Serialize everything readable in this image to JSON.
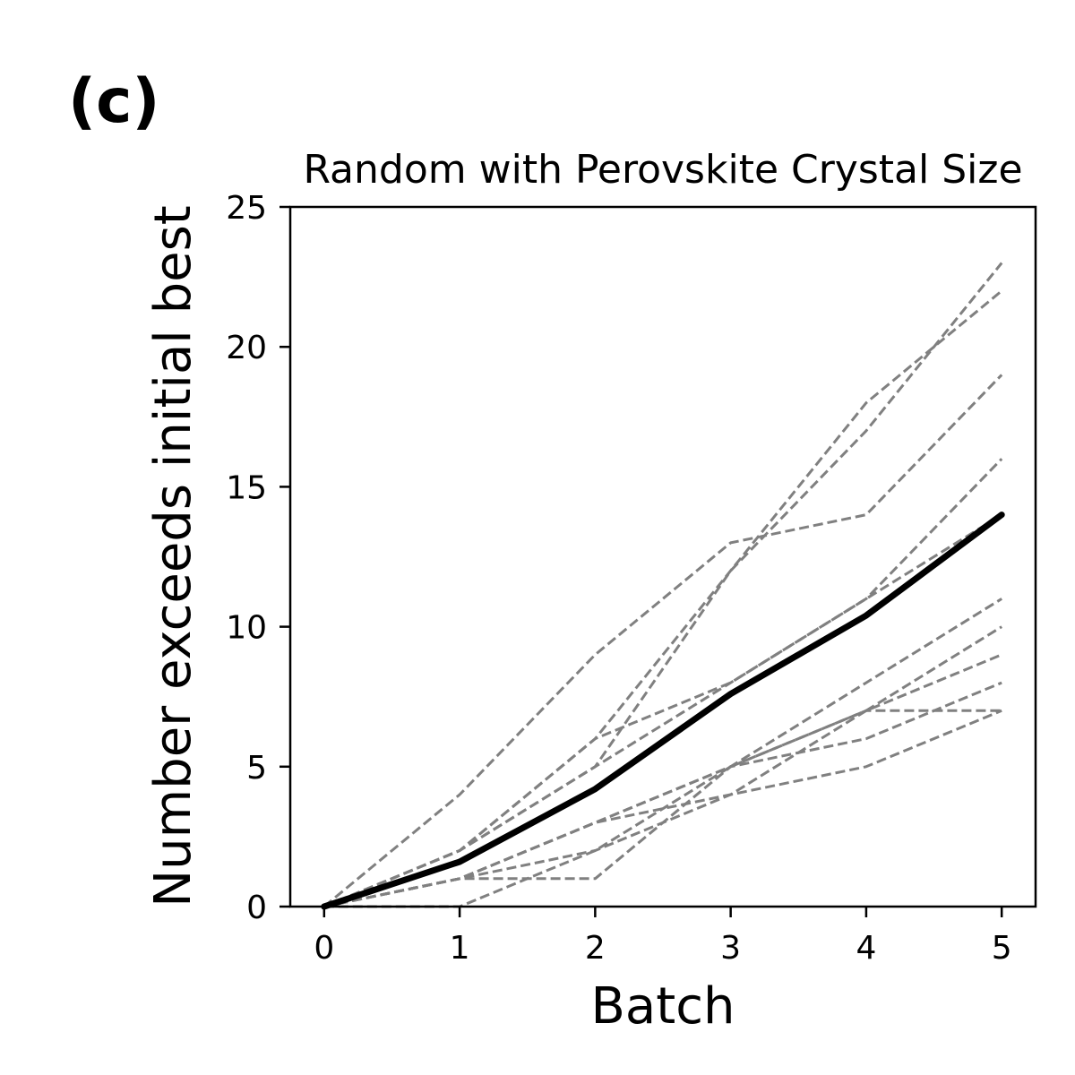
{
  "panel_label": "(c)",
  "chart_data": {
    "type": "line",
    "title": "Random with Perovskite Crystal Size",
    "xlabel": "Batch",
    "ylabel": "Number exceeds initial best",
    "x": [
      0,
      1,
      2,
      3,
      4,
      5
    ],
    "xlim": [
      -0.25,
      5.25
    ],
    "ylim": [
      0,
      25
    ],
    "xticks": [
      "0",
      "1",
      "2",
      "3",
      "4",
      "5"
    ],
    "yticks": [
      "0",
      "5",
      "10",
      "15",
      "20",
      "25"
    ],
    "grid": false,
    "legend": "none",
    "series": [
      {
        "style": "dashed",
        "color": "#808080",
        "values": [
          0,
          2,
          6,
          12,
          18,
          22
        ]
      },
      {
        "style": "dashed",
        "color": "#808080",
        "values": [
          0,
          2,
          5,
          12,
          17,
          23
        ]
      },
      {
        "style": "dashed",
        "color": "#808080",
        "values": [
          0,
          4,
          9,
          13,
          14,
          19
        ]
      },
      {
        "style": "dashed",
        "color": "#808080",
        "values": [
          0,
          2,
          5,
          8,
          11,
          16
        ]
      },
      {
        "style": "dashed",
        "color": "#808080",
        "values": [
          0,
          2,
          6,
          8,
          11,
          14
        ]
      },
      {
        "style": "dashed",
        "color": "#808080",
        "values": [
          0,
          1,
          3,
          5,
          8,
          11
        ]
      },
      {
        "style": "dashed",
        "color": "#808080",
        "values": [
          0,
          0,
          2,
          5,
          7,
          10
        ]
      },
      {
        "style": "dashed",
        "color": "#808080",
        "values": [
          0,
          1,
          3,
          4,
          7,
          9
        ]
      },
      {
        "style": "dashed",
        "color": "#808080",
        "values": [
          0,
          1,
          1,
          5,
          6,
          8
        ]
      },
      {
        "style": "dashed",
        "color": "#808080",
        "values": [
          0,
          1,
          2,
          4,
          5,
          7
        ]
      },
      {
        "style": "dashed",
        "color": "#808080",
        "values": [
          0,
          1,
          3,
          5,
          7,
          7
        ]
      },
      {
        "style": "solid",
        "color": "#000000",
        "values": [
          0,
          1.6,
          4.2,
          7.6,
          10.4,
          14.0
        ]
      }
    ]
  }
}
